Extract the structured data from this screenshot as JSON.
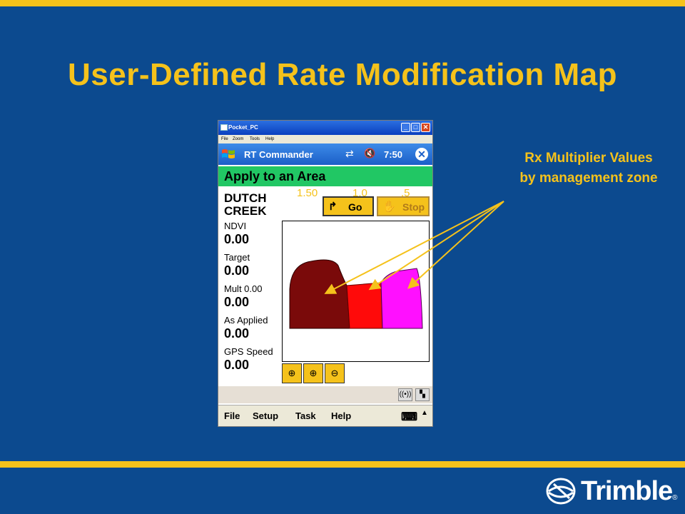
{
  "slide": {
    "title": "User-Defined Rate Modification Map",
    "callout_line1": "Rx Multiplier Values",
    "callout_line2": "by management zone",
    "logo_text": "Trimble",
    "logo_mark": "®",
    "colors": {
      "background": "#0c4a8f",
      "accent": "#f5c21b"
    }
  },
  "device": {
    "window_title": "Pocket_PC",
    "menu": [
      "File",
      "Zoom",
      "Tools",
      "Help"
    ],
    "app_name": "RT Commander",
    "time": "7:50",
    "screen_title": "Apply to an Area",
    "field_name": "DUTCH CREEK",
    "go_label": "Go",
    "stop_label": "Stop",
    "stats": [
      {
        "label": "NDVI",
        "value": "0.00"
      },
      {
        "label": "Target",
        "value": "0.00"
      },
      {
        "label": "Mult 0.00",
        "value": "0.00"
      },
      {
        "label": "As Applied",
        "value": "0.00"
      },
      {
        "label": "GPS Speed",
        "value": "0.00"
      }
    ],
    "zones": [
      {
        "label": "1.50",
        "color": "#7a0a0a"
      },
      {
        "label": "1.0",
        "color": "#ff0a0a"
      },
      {
        "label": ".5",
        "color": "#ff10ff"
      }
    ],
    "zoom_icons": [
      "zoom-extents-icon",
      "zoom-in-icon",
      "zoom-out-icon"
    ],
    "command_bar": [
      "File",
      "Setup",
      "Task",
      "Help"
    ]
  }
}
